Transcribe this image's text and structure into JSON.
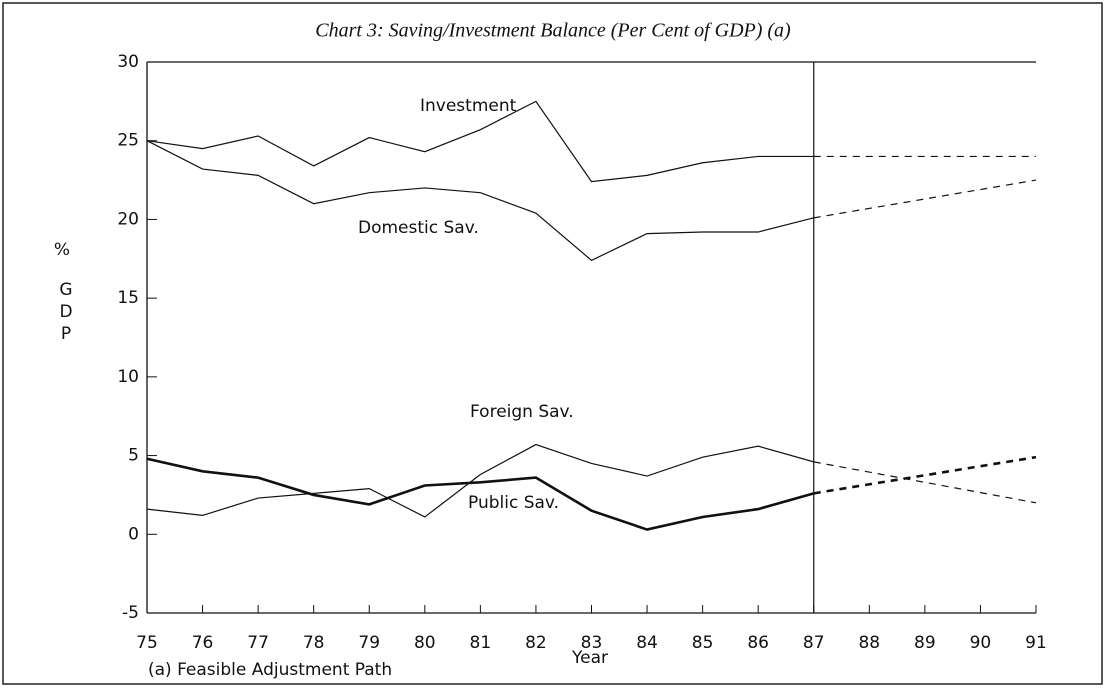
{
  "chart_data": {
    "type": "line",
    "title": "Chart 3: Saving/Investment Balance (Per Cent of GDP) (a)",
    "ylabel": [
      "%",
      "GDP"
    ],
    "xlabel": "Year",
    "footnote": "(a) Feasible Adjustment Path",
    "x": [
      75,
      76,
      77,
      78,
      79,
      80,
      81,
      82,
      83,
      84,
      85,
      86,
      87,
      91
    ],
    "dashed_from": 87,
    "series": [
      {
        "name": "Investment",
        "color": "#111",
        "width": 1.2,
        "values": [
          25,
          24.5,
          25.3,
          23.4,
          25.2,
          24.3,
          25.7,
          27.5,
          22.4,
          22.8,
          23.6,
          24.0,
          24.0,
          24.0
        ]
      },
      {
        "name": "Domestic Sav.",
        "color": "#111",
        "width": 1.2,
        "values": [
          25,
          23.2,
          22.8,
          21.0,
          21.7,
          22.0,
          21.7,
          20.4,
          17.4,
          19.1,
          19.2,
          19.2,
          20.1,
          22.5
        ]
      },
      {
        "name": "Foreign Sav.",
        "color": "#111",
        "width": 1.2,
        "values": [
          1.6,
          1.2,
          2.3,
          2.6,
          2.9,
          1.1,
          3.8,
          5.7,
          4.5,
          3.7,
          4.9,
          5.6,
          4.6,
          2.0
        ]
      },
      {
        "name": "Public Sav.",
        "color": "#111",
        "width": 2.6,
        "values": [
          4.8,
          4.0,
          3.6,
          2.5,
          1.9,
          3.1,
          3.3,
          3.6,
          1.5,
          0.3,
          1.1,
          1.6,
          2.6,
          4.9
        ]
      }
    ],
    "xlim": [
      75,
      91
    ],
    "xticks": [
      75,
      76,
      77,
      78,
      79,
      80,
      81,
      82,
      83,
      84,
      85,
      86,
      87,
      88,
      89,
      90,
      91
    ],
    "ylim": [
      -5,
      30
    ],
    "yticks": [
      -5,
      0,
      5,
      10,
      15,
      20,
      25,
      30
    ]
  }
}
